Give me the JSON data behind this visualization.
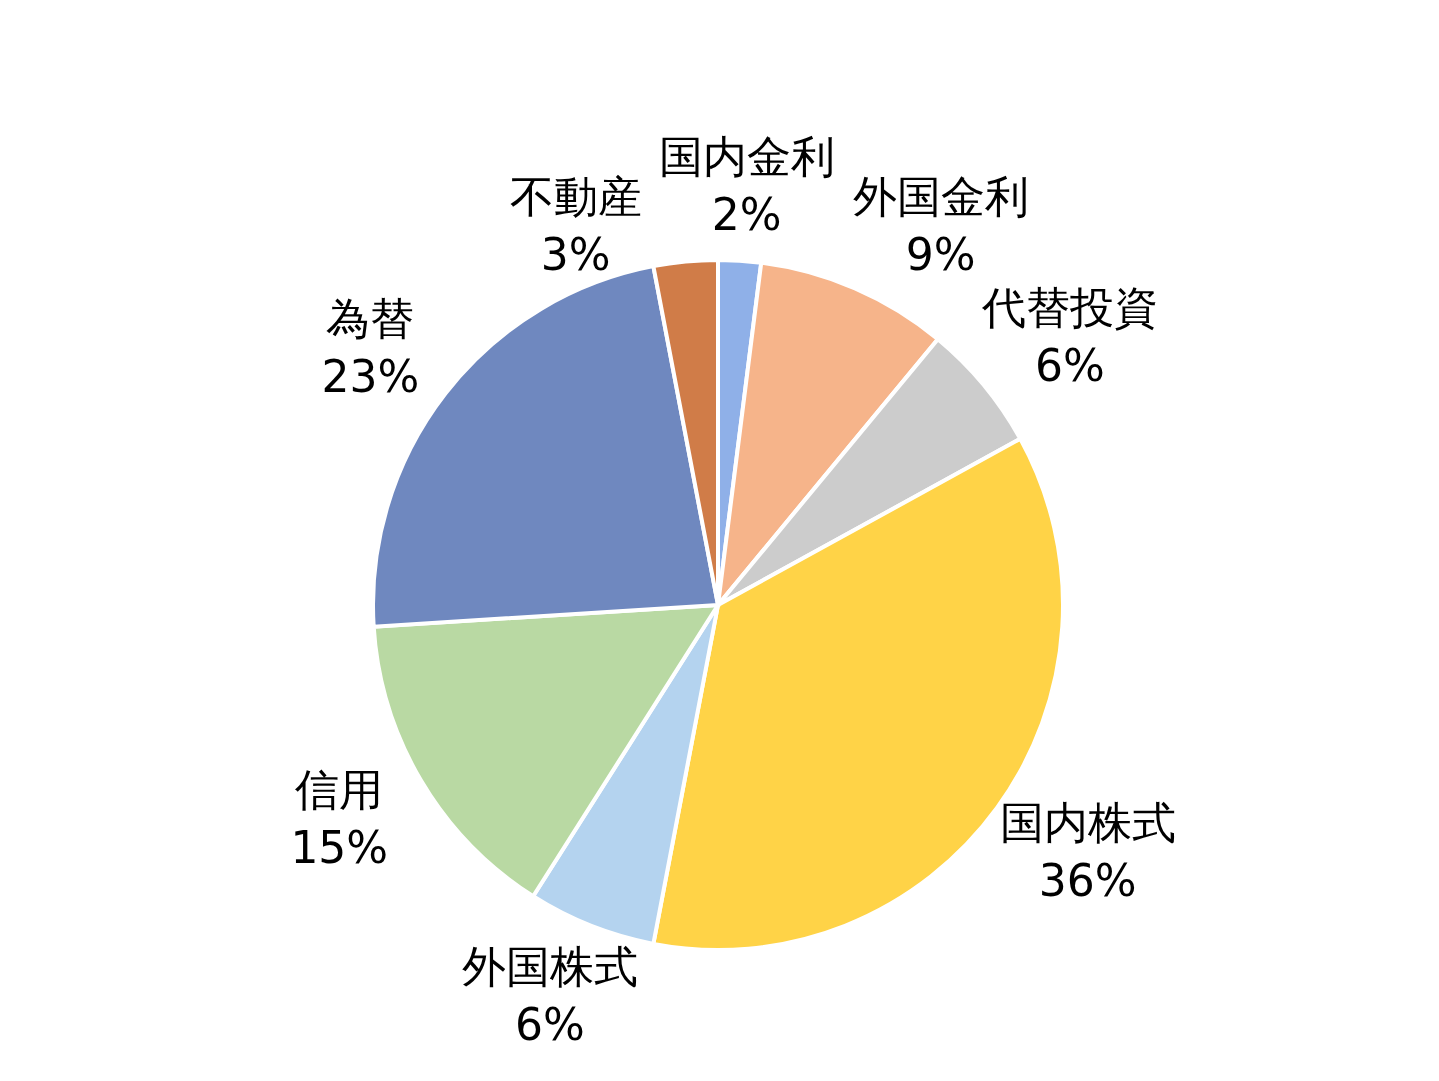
{
  "chart_data": {
    "type": "pie",
    "categories": [
      "国内金利",
      "外国金利",
      "代替投資",
      "国内株式",
      "外国株式",
      "信用",
      "為替",
      "不動産"
    ],
    "values": [
      2,
      9,
      6,
      36,
      6,
      15,
      23,
      3
    ],
    "value_labels": [
      "2%",
      "9%",
      "6%",
      "36%",
      "6%",
      "15%",
      "23%",
      "3%"
    ],
    "colors": [
      "#8fb0e8",
      "#f6b48a",
      "#cccccc",
      "#ffd347",
      "#b4d3ef",
      "#b9d9a3",
      "#6f88bf",
      "#d07c48"
    ]
  }
}
